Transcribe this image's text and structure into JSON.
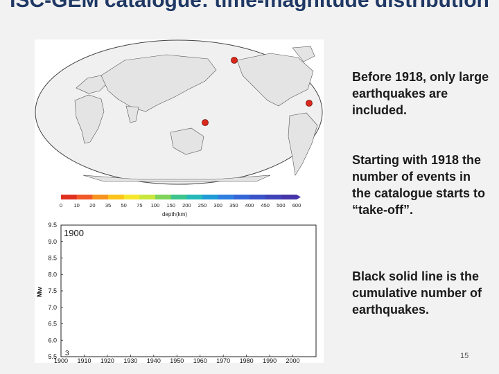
{
  "slide": {
    "title": "ISC-GEM catalogue: time-magnitude distribution",
    "bullets": [
      "Before 1918, only large earthquakes are included.",
      "Starting with 1918 the number of events in the catalogue starts to “take-off”.",
      "Black solid line is the cumulative number of earthquakes."
    ],
    "page_number": "15"
  },
  "map": {
    "colorbar_ticks": [
      "0",
      "10",
      "20",
      "35",
      "50",
      "75",
      "100",
      "150",
      "200",
      "250",
      "300",
      "350",
      "400",
      "450",
      "500",
      "600"
    ],
    "colorbar_colors": [
      "#e03020",
      "#f05a28",
      "#f7931e",
      "#fcc419",
      "#f6e62b",
      "#c8e63c",
      "#7fd35a",
      "#3cc48c",
      "#25b8b8",
      "#1f9bd6",
      "#2f7ee0",
      "#3466d6",
      "#3a52c8",
      "#3f43b8",
      "#4535a8"
    ],
    "colorbar_label": "depth(km)",
    "event_color": "#d9291c",
    "events": [
      {
        "name": "alaska-event"
      },
      {
        "name": "caribbean-event"
      },
      {
        "name": "melanesia-event"
      }
    ]
  },
  "chart_data": {
    "type": "scatter",
    "year_label": "1900",
    "ylabel": "Mw",
    "x_ticks": [
      "1900",
      "1910",
      "1920",
      "1930",
      "1940",
      "1950",
      "1960",
      "1970",
      "1980",
      "1990",
      "2000"
    ],
    "y_ticks": [
      "9.5",
      "9.0",
      "8.5",
      "8.0",
      "7.5",
      "7.0",
      "6.5",
      "6.0",
      "5.5"
    ],
    "xlim": [
      1900,
      2010
    ],
    "ylim": [
      5.5,
      9.5
    ],
    "cumulative_count": "3"
  }
}
